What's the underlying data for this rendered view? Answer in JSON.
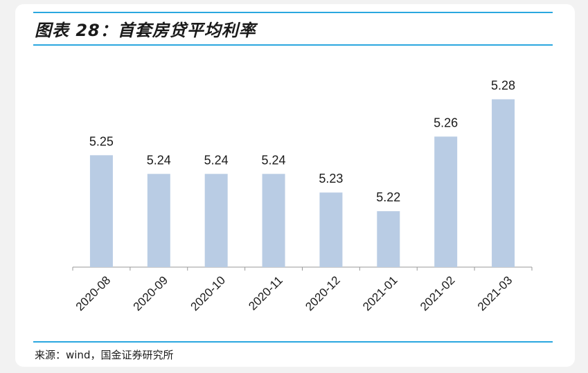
{
  "title": "图表 28：首套房贷平均利率",
  "source": "来源：wind，国金证券研究所",
  "colors": {
    "bar": "#b9cce4",
    "accent_rule": "#2aa7df",
    "axis": "#999999",
    "text": "#1a1a1a"
  },
  "chart_data": {
    "type": "bar",
    "title": "首套房贷平均利率",
    "xlabel": "",
    "ylabel": "",
    "categories": [
      "2020-08",
      "2020-09",
      "2020-10",
      "2020-11",
      "2020-12",
      "2021-01",
      "2021-02",
      "2021-03"
    ],
    "values": [
      5.25,
      5.24,
      5.24,
      5.24,
      5.23,
      5.22,
      5.26,
      5.28
    ],
    "ylim": [
      5.19,
      5.285
    ],
    "data_labels": [
      "5.25",
      "5.24",
      "5.24",
      "5.24",
      "5.23",
      "5.22",
      "5.26",
      "5.28"
    ],
    "grid": false,
    "legend": "none"
  }
}
